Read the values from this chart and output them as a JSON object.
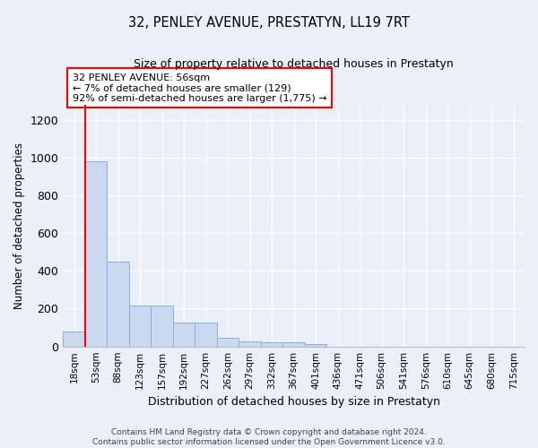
{
  "title": "32, PENLEY AVENUE, PRESTATYN, LL19 7RT",
  "subtitle": "Size of property relative to detached houses in Prestatyn",
  "xlabel": "Distribution of detached houses by size in Prestatyn",
  "ylabel": "Number of detached properties",
  "categories": [
    "18sqm",
    "53sqm",
    "88sqm",
    "123sqm",
    "157sqm",
    "192sqm",
    "227sqm",
    "262sqm",
    "297sqm",
    "332sqm",
    "367sqm",
    "401sqm",
    "436sqm",
    "471sqm",
    "506sqm",
    "541sqm",
    "576sqm",
    "610sqm",
    "645sqm",
    "680sqm",
    "715sqm"
  ],
  "values": [
    80,
    980,
    450,
    215,
    215,
    125,
    125,
    47,
    25,
    22,
    22,
    12,
    0,
    0,
    0,
    0,
    0,
    0,
    0,
    0,
    0
  ],
  "bar_color": "#c9d9f0",
  "bar_edge_color": "#8aaede",
  "annotation_box_text": "32 PENLEY AVENUE: 56sqm\n← 7% of detached houses are smaller (129)\n92% of semi-detached houses are larger (1,775) →",
  "annotation_box_color": "white",
  "annotation_box_edge_color": "red",
  "red_line_color": "red",
  "ylim": [
    0,
    1280
  ],
  "yticks": [
    0,
    200,
    400,
    600,
    800,
    1000,
    1200
  ],
  "background_color": "#eaeff8",
  "grid_color": "white",
  "footer": "Contains HM Land Registry data © Crown copyright and database right 2024.\nContains public sector information licensed under the Open Government Licence v3.0."
}
